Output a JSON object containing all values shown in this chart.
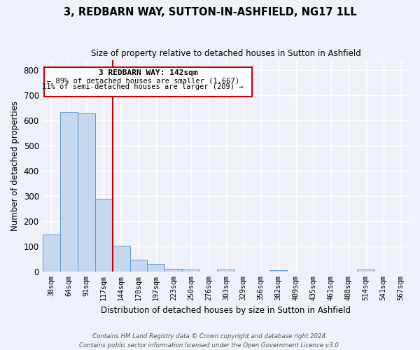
{
  "title": "3, REDBARN WAY, SUTTON-IN-ASHFIELD, NG17 1LL",
  "subtitle": "Size of property relative to detached houses in Sutton in Ashfield",
  "xlabel": "Distribution of detached houses by size in Sutton in Ashfield",
  "ylabel": "Number of detached properties",
  "bar_color": "#c5d8ed",
  "bar_edge_color": "#5b9bd5",
  "bar_categories": [
    "38sqm",
    "64sqm",
    "91sqm",
    "117sqm",
    "144sqm",
    "170sqm",
    "197sqm",
    "223sqm",
    "250sqm",
    "276sqm",
    "303sqm",
    "329sqm",
    "356sqm",
    "382sqm",
    "409sqm",
    "435sqm",
    "461sqm",
    "488sqm",
    "514sqm",
    "541sqm",
    "567sqm"
  ],
  "bar_values": [
    148,
    633,
    627,
    289,
    103,
    46,
    31,
    11,
    8,
    0,
    8,
    0,
    0,
    6,
    0,
    0,
    0,
    0,
    8,
    0,
    0
  ],
  "ylim": [
    0,
    840
  ],
  "yticks": [
    0,
    100,
    200,
    300,
    400,
    500,
    600,
    700,
    800
  ],
  "marker_bar_index": 4,
  "marker_label": "3 REDBARN WAY: 142sqm",
  "annotation_line1": "← 89% of detached houses are smaller (1,667)",
  "annotation_line2": "11% of semi-detached houses are larger (209) →",
  "annotation_box_color": "#ffffff",
  "annotation_box_edge_color": "#cc0000",
  "marker_line_color": "#cc0000",
  "footer_line1": "Contains HM Land Registry data © Crown copyright and database right 2024.",
  "footer_line2": "Contains public sector information licensed under the Open Government Licence v3.0.",
  "background_color": "#eef2f8",
  "grid_color": "#ffffff"
}
